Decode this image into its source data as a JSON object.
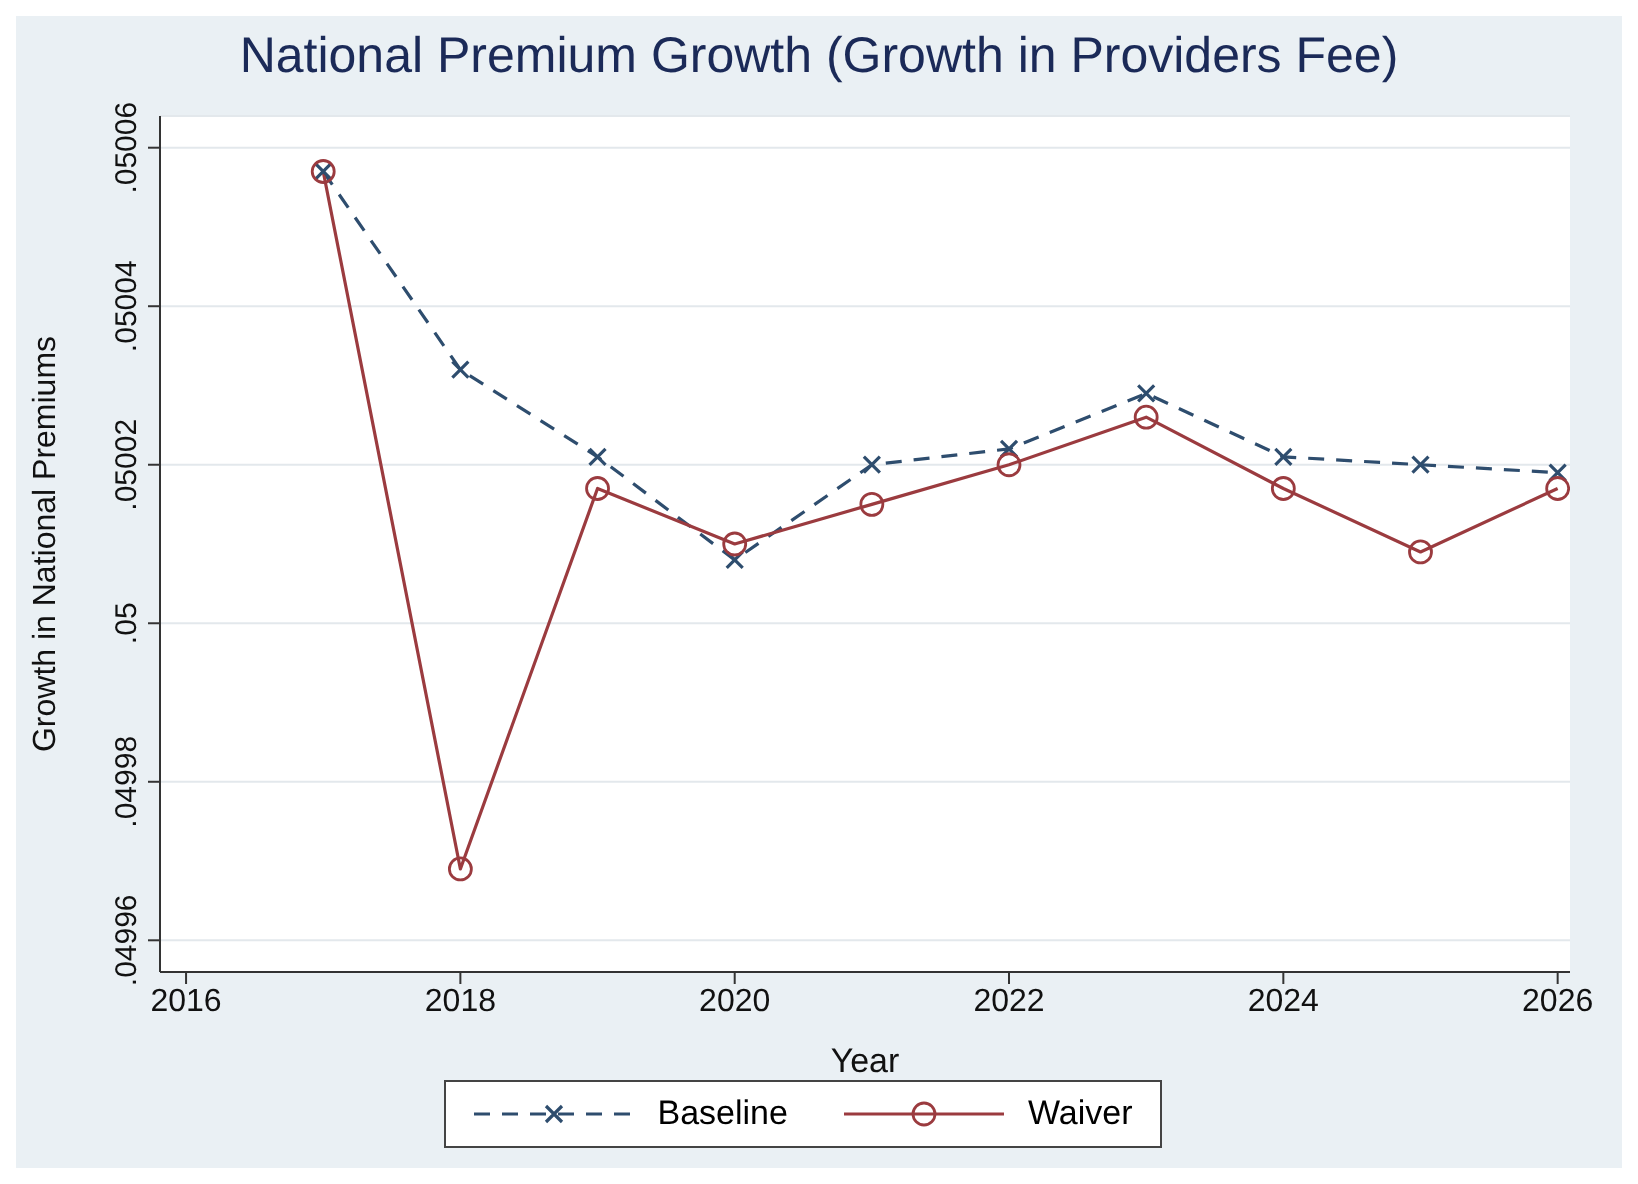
{
  "chart_data": {
    "type": "line",
    "title": "National Premium Growth (Growth in Providers Fee)",
    "xlabel": "Year",
    "ylabel": "Growth in National Premiums",
    "x": [
      2017,
      2018,
      2019,
      2020,
      2021,
      2022,
      2023,
      2024,
      2025,
      2026
    ],
    "series": [
      {
        "name": "Baseline",
        "color": "#2e4d6e",
        "marker": "cross",
        "line_style": "dashed",
        "values": [
          0.050057,
          0.050032,
          0.050021,
          0.050008,
          0.05002,
          0.050022,
          0.050029,
          0.050021,
          0.05002,
          0.050019
        ]
      },
      {
        "name": "Waiver",
        "color": "#9b3b3f",
        "marker": "circle",
        "line_style": "solid",
        "values": [
          0.050057,
          0.049969,
          0.050017,
          0.05001,
          0.050015,
          0.05002,
          0.050026,
          0.050017,
          0.050009,
          0.050017
        ]
      }
    ],
    "xlim": [
      2015.81,
      2026.09
    ],
    "xticks": [
      2016,
      2018,
      2020,
      2022,
      2024,
      2026
    ],
    "ylim": [
      0.049956,
      0.050064
    ],
    "yticks": [
      {
        "value": 0.04996,
        "label": ".04996"
      },
      {
        "value": 0.04998,
        "label": ".04998"
      },
      {
        "value": 0.05,
        "label": ".05"
      },
      {
        "value": 0.05002,
        "label": ".05002"
      },
      {
        "value": 0.05004,
        "label": ".05004"
      },
      {
        "value": 0.05006,
        "label": ".05006"
      }
    ],
    "grid": "y",
    "legend": "bottom"
  }
}
